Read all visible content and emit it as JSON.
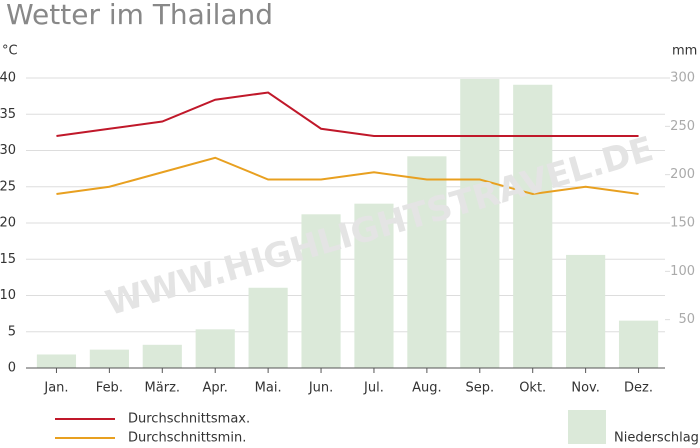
{
  "chart_data": {
    "type": "combo",
    "title": "Wetter im Thailand",
    "watermark": "WWW.HIGHLIGHTSTRAVEL.DE",
    "y_label": "°C",
    "y2_label": "mm",
    "categories": [
      "Jan.",
      "Feb.",
      "März.",
      "Apr.",
      "Mai.",
      "Jun.",
      "Jul.",
      "Aug.",
      "Sep.",
      "Okt.",
      "Nov.",
      "Dez."
    ],
    "series": [
      {
        "name": "Niederschlag",
        "kind": "bar",
        "axis": "y2",
        "color": "#dbe9d9",
        "values": [
          14,
          19,
          24,
          40,
          83,
          159,
          170,
          219,
          299,
          293,
          117,
          49
        ]
      },
      {
        "name": "Durchschnittsmax.",
        "kind": "line",
        "color": "#c0182a",
        "values": [
          32,
          33,
          34,
          37,
          38,
          33,
          32,
          32,
          32,
          32,
          32,
          32
        ]
      },
      {
        "name": "Durchschnittsmin.",
        "kind": "line",
        "color": "#e8a020",
        "values": [
          24,
          25,
          27,
          29,
          26,
          26,
          27,
          26,
          26,
          24,
          25,
          24
        ]
      }
    ],
    "ylim": [
      0,
      40
    ],
    "yticks": [
      0,
      5,
      10,
      15,
      20,
      25,
      30,
      35,
      40
    ],
    "y2lim": [
      0,
      300
    ],
    "y2ticks": [
      50,
      100,
      150,
      200,
      250,
      300
    ],
    "grid": true
  }
}
